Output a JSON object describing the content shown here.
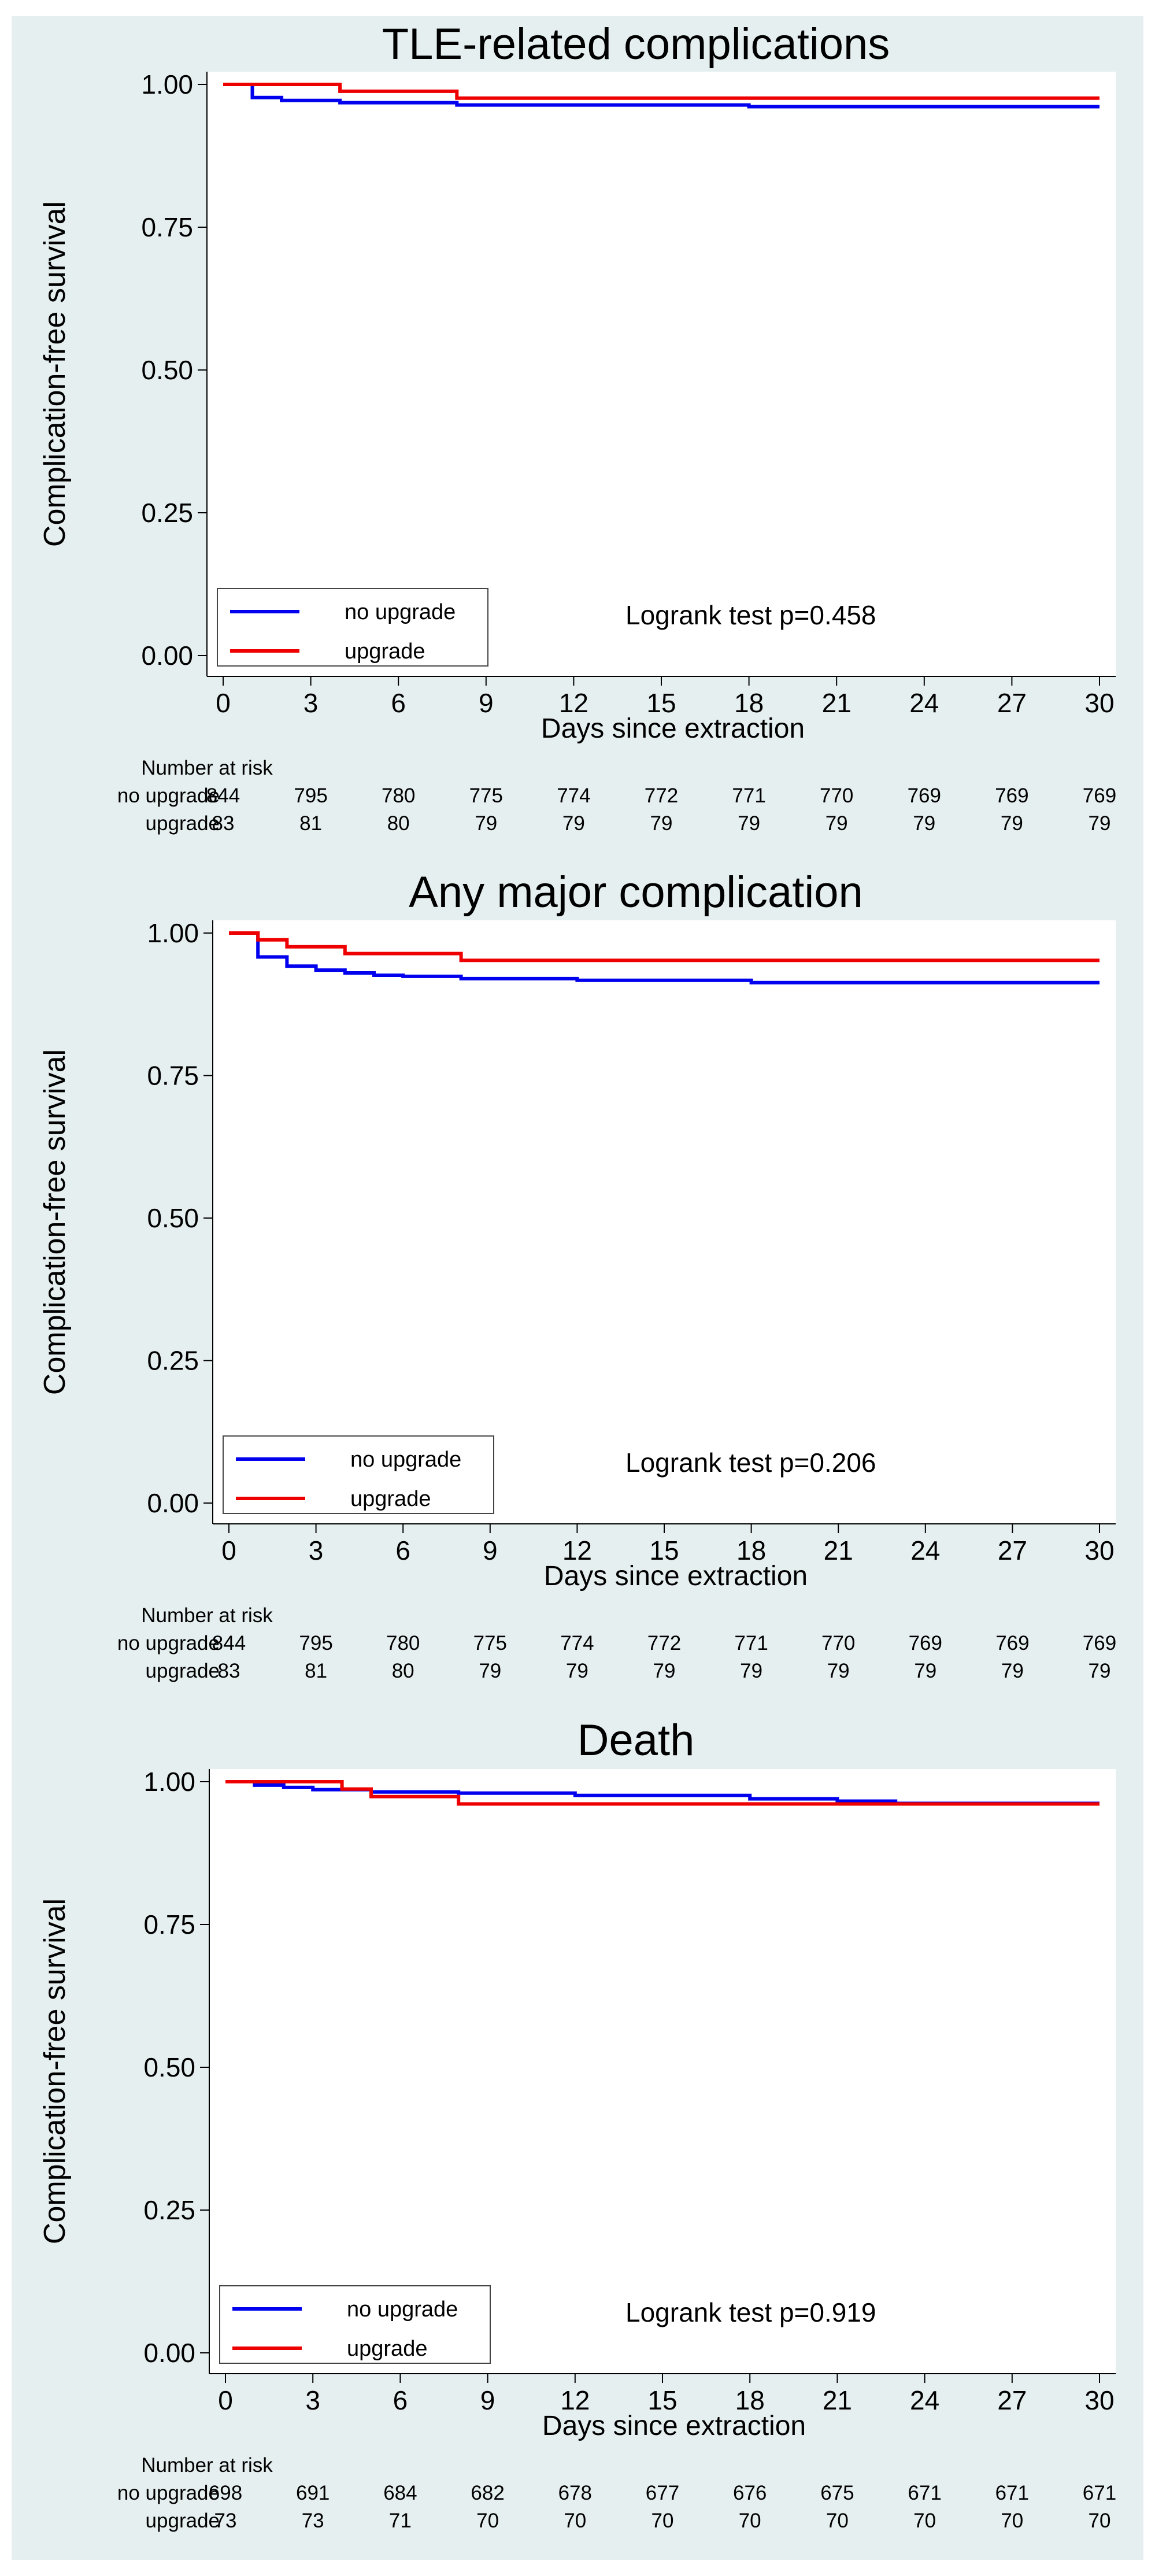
{
  "chart_data": [
    {
      "type": "line",
      "title": "TLE-related complications",
      "xlabel": "Days since extraction",
      "ylabel": "Complication-free survival",
      "xlim": [
        0,
        30
      ],
      "ylim": [
        0,
        1
      ],
      "x_ticks": [
        0,
        3,
        6,
        9,
        12,
        15,
        18,
        21,
        24,
        27,
        30
      ],
      "y_ticks": [
        "0.00",
        "0.25",
        "0.50",
        "0.75",
        "1.00"
      ],
      "grid": false,
      "legend_position": "bottom-left",
      "annotation": "Logrank test p=0.458",
      "series": [
        {
          "name": "no upgrade",
          "color": "#0000ee",
          "step_x": [
            0,
            1,
            2,
            4,
            8,
            18,
            30
          ],
          "step_y": [
            1.0,
            0.977,
            0.972,
            0.968,
            0.964,
            0.961,
            0.961
          ]
        },
        {
          "name": "upgrade",
          "color": "#ee0000",
          "step_x": [
            0,
            4,
            8,
            30
          ],
          "step_y": [
            1.0,
            0.988,
            0.976,
            0.976
          ]
        }
      ],
      "risk_table": {
        "heading": "Number at risk",
        "rows": [
          {
            "label": "no upgrade",
            "values": [
              "844",
              "795",
              "780",
              "775",
              "774",
              "772",
              "771",
              "770",
              "769",
              "769",
              "769"
            ]
          },
          {
            "label": "upgrade",
            "values": [
              "83",
              "81",
              "80",
              "79",
              "79",
              "79",
              "79",
              "79",
              "79",
              "79",
              "79"
            ]
          }
        ]
      }
    },
    {
      "type": "line",
      "title": "Any major complication",
      "xlabel": "Days since extraction",
      "ylabel": "Complication-free survival",
      "xlim": [
        0,
        30
      ],
      "ylim": [
        0,
        1
      ],
      "x_ticks": [
        0,
        3,
        6,
        9,
        12,
        15,
        18,
        21,
        24,
        27,
        30
      ],
      "y_ticks": [
        "0.00",
        "0.25",
        "0.50",
        "0.75",
        "1.00"
      ],
      "grid": false,
      "legend_position": "bottom-left",
      "annotation": "Logrank test p=0.206",
      "series": [
        {
          "name": "no upgrade",
          "color": "#0000ee",
          "step_x": [
            0,
            1,
            2,
            3,
            4,
            5,
            6,
            8,
            12,
            18,
            30
          ],
          "step_y": [
            1.0,
            0.958,
            0.942,
            0.935,
            0.93,
            0.926,
            0.924,
            0.92,
            0.917,
            0.913,
            0.913
          ]
        },
        {
          "name": "upgrade",
          "color": "#ee0000",
          "step_x": [
            0,
            1,
            2,
            4,
            8,
            30
          ],
          "step_y": [
            1.0,
            0.988,
            0.976,
            0.964,
            0.952,
            0.952
          ]
        }
      ],
      "risk_table": {
        "heading": "Number at risk",
        "rows": [
          {
            "label": "no upgrade",
            "values": [
              "844",
              "795",
              "780",
              "775",
              "774",
              "772",
              "771",
              "770",
              "769",
              "769",
              "769"
            ]
          },
          {
            "label": "upgrade",
            "values": [
              "83",
              "81",
              "80",
              "79",
              "79",
              "79",
              "79",
              "79",
              "79",
              "79",
              "79"
            ]
          }
        ]
      }
    },
    {
      "type": "line",
      "title": "Death",
      "xlabel": "Days since extraction",
      "ylabel": "Complication-free survival",
      "xlim": [
        0,
        30
      ],
      "ylim": [
        0,
        1
      ],
      "x_ticks": [
        0,
        3,
        6,
        9,
        12,
        15,
        18,
        21,
        24,
        27,
        30
      ],
      "y_ticks": [
        "0.00",
        "0.25",
        "0.50",
        "0.75",
        "1.00"
      ],
      "grid": false,
      "legend_position": "bottom-left",
      "annotation": "Logrank test p=0.919",
      "series": [
        {
          "name": "no upgrade",
          "color": "#0000ee",
          "step_x": [
            0,
            1,
            2,
            3,
            5,
            8,
            12,
            18,
            21,
            23,
            30
          ],
          "step_y": [
            1.0,
            0.994,
            0.99,
            0.986,
            0.982,
            0.98,
            0.976,
            0.97,
            0.966,
            0.962,
            0.962
          ]
        },
        {
          "name": "upgrade",
          "color": "#ee0000",
          "step_x": [
            0,
            4,
            5,
            8,
            30
          ],
          "step_y": [
            1.0,
            0.987,
            0.974,
            0.961,
            0.961
          ]
        }
      ],
      "risk_table": {
        "heading": "Number at risk",
        "rows": [
          {
            "label": "no upgrade",
            "values": [
              "698",
              "691",
              "684",
              "682",
              "678",
              "677",
              "676",
              "675",
              "671",
              "671",
              "671"
            ]
          },
          {
            "label": "upgrade",
            "values": [
              "73",
              "73",
              "71",
              "70",
              "70",
              "70",
              "70",
              "70",
              "70",
              "70",
              "70"
            ]
          }
        ]
      }
    }
  ]
}
